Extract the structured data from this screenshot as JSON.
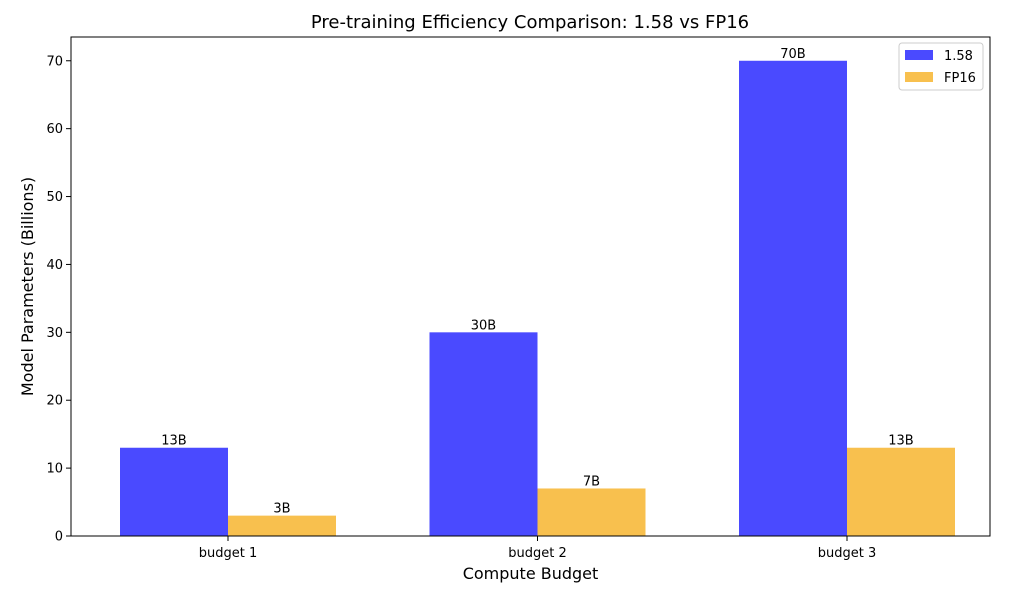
{
  "chart_data": {
    "type": "bar",
    "title": "Pre-training Efficiency Comparison: 1.58 vs FP16",
    "xlabel": "Compute Budget",
    "ylabel": "Model Parameters (Billions)",
    "categories": [
      "budget 1",
      "budget 2",
      "budget 3"
    ],
    "series": [
      {
        "name": "1.58",
        "values": [
          13,
          30,
          70
        ],
        "labels": [
          "13B",
          "30B",
          "70B"
        ],
        "color": "#4a4aff"
      },
      {
        "name": "FP16",
        "values": [
          3,
          7,
          13
        ],
        "labels": [
          "3B",
          "7B",
          "13B"
        ],
        "color": "#f8c04e"
      }
    ],
    "ylim": [
      0,
      73.5
    ],
    "yticks": [
      0,
      10,
      20,
      30,
      40,
      50,
      60,
      70
    ],
    "grid": false,
    "legend_position": "top-right"
  }
}
